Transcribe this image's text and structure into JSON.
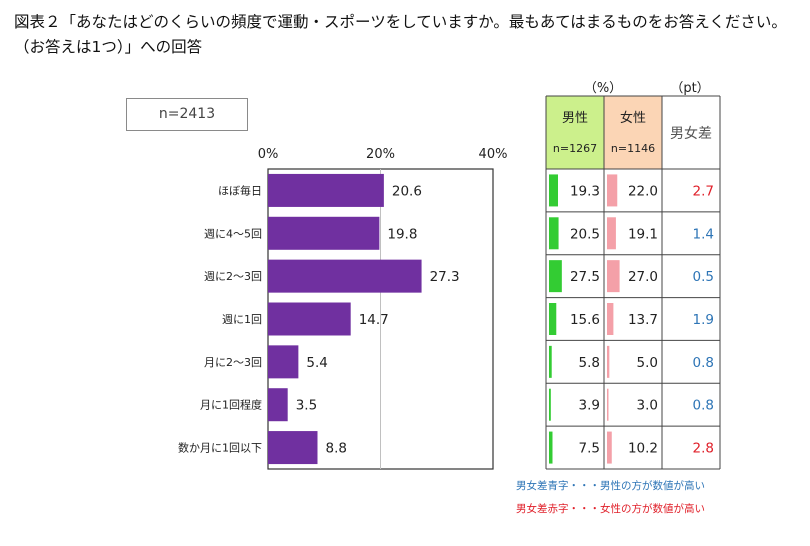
{
  "title": "図表２「あなたはどのくらいの頻度で運動・スポーツをしていますか。最もあてはまるものをお答えください。（お答えは1つ）」への回答",
  "n_label": "n=2413",
  "units": {
    "pct": "（%）",
    "pt": "（pt）"
  },
  "table_headers": {
    "male": "男性",
    "male_n": "n=1267",
    "female": "女性",
    "female_n": "n=1146",
    "diff": "男女差"
  },
  "legend_notes": {
    "blue": "男女差青字・・・男性の方が数値が高い",
    "red": "男女差赤字・・・女性の方が数値が高い"
  },
  "colors": {
    "bar": "#7030a0",
    "male_bar": "#33cc33",
    "female_bar": "#f4a0a8",
    "diff_blue": "#2e75b6",
    "diff_red": "#e0202a",
    "male_header": "#ccf08c",
    "female_header": "#fbd5b5"
  },
  "chart_data": {
    "type": "bar",
    "orientation": "horizontal",
    "categories": [
      "ほぼ毎日",
      "週に4～5回",
      "週に2～3回",
      "週に1回",
      "月に2～3回",
      "月に1回程度",
      "数か月に1回以下"
    ],
    "values": [
      20.6,
      19.8,
      27.3,
      14.7,
      5.4,
      3.5,
      8.8
    ],
    "xlim": [
      0,
      40
    ],
    "xticks": [
      "0%",
      "20%",
      "40%"
    ],
    "gridline_at": 20
  },
  "table": {
    "rows": [
      {
        "male": "19.3",
        "female": "22.0",
        "diff": "2.7",
        "sign": "red"
      },
      {
        "male": "20.5",
        "female": "19.1",
        "diff": "1.4",
        "sign": "blue"
      },
      {
        "male": "27.5",
        "female": "27.0",
        "diff": "0.5",
        "sign": "blue"
      },
      {
        "male": "15.6",
        "female": "13.7",
        "diff": "1.9",
        "sign": "blue"
      },
      {
        "male": "5.8",
        "female": "5.0",
        "diff": "0.8",
        "sign": "blue"
      },
      {
        "male": "3.9",
        "female": "3.0",
        "diff": "0.8",
        "sign": "blue"
      },
      {
        "male": "7.5",
        "female": "10.2",
        "diff": "2.8",
        "sign": "red"
      }
    ]
  }
}
